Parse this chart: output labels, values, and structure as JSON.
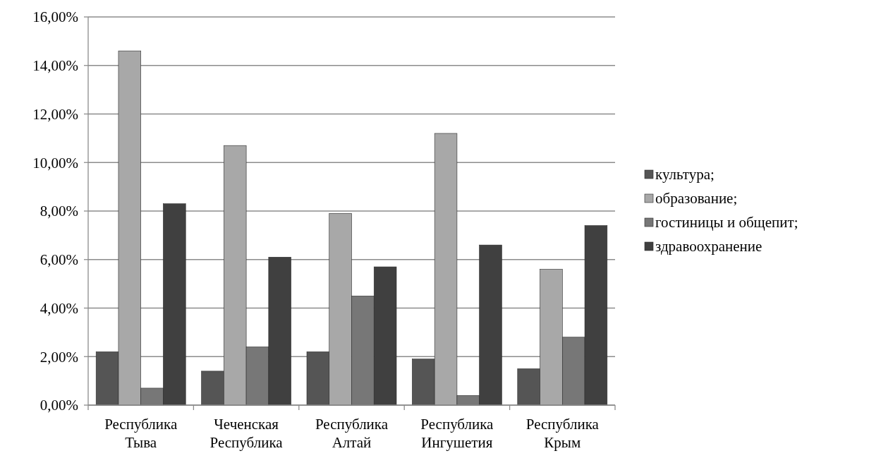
{
  "chart_data": {
    "type": "bar",
    "categories": [
      "Республика Тыва",
      "Чеченская Республика",
      "Республика Алтай",
      "Республика Ингушетия",
      "Республика Крым"
    ],
    "series": [
      {
        "name": "культура;",
        "color": "#555555",
        "values": [
          2.2,
          1.4,
          2.2,
          1.9,
          1.5
        ]
      },
      {
        "name": "образование;",
        "color": "#a8a8a8",
        "values": [
          14.6,
          10.7,
          7.9,
          11.2,
          5.6
        ]
      },
      {
        "name": "гостиницы и общепит;",
        "color": "#777777",
        "values": [
          0.7,
          2.4,
          4.5,
          0.4,
          2.8
        ]
      },
      {
        "name": "здравоохранение",
        "color": "#404040",
        "values": [
          8.3,
          6.1,
          5.7,
          6.6,
          7.4
        ]
      }
    ],
    "ylim": [
      0,
      16
    ],
    "yticks": [
      {
        "value": 0,
        "label": "0,00%"
      },
      {
        "value": 2,
        "label": "2,00%"
      },
      {
        "value": 4,
        "label": "4,00%"
      },
      {
        "value": 6,
        "label": "6,00%"
      },
      {
        "value": 8,
        "label": "8,00%"
      },
      {
        "value": 10,
        "label": "10,00%"
      },
      {
        "value": 12,
        "label": "12,00%"
      },
      {
        "value": 14,
        "label": "14,00%"
      },
      {
        "value": 16,
        "label": "16,00%"
      }
    ],
    "grid": "y",
    "legend": "right"
  }
}
